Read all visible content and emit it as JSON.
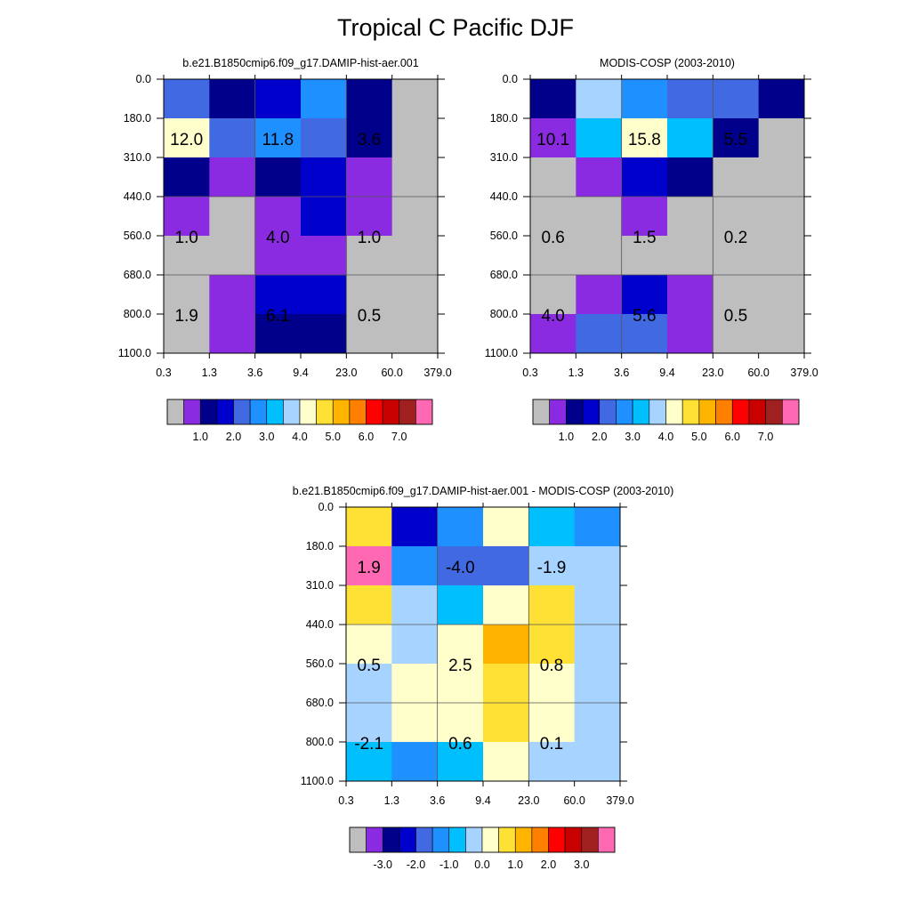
{
  "title": "Tropical C Pacific DJF",
  "colors": {
    "missing": "#bebebe",
    "box": "#000000",
    "grid": "#555555"
  },
  "chart_data": [
    {
      "type": "heatmap",
      "title": "b.e21.B1850cmip6.f09_g17.DAMIP-hist-aer.001",
      "xticks": [
        "0.3",
        "1.3",
        "3.6",
        "9.4",
        "23.0",
        "60.0",
        "379.0"
      ],
      "yticks": [
        "0.0",
        "180.0",
        "310.0",
        "440.0",
        "560.0",
        "680.0",
        "800.0",
        "1100.0"
      ],
      "cell_colors": [
        [
          "#4169e1",
          "#00008b",
          "#0000cd",
          "#1e90ff",
          "#00008b",
          "#bebebe"
        ],
        [
          "#ffffcc",
          "#4169e1",
          "#1e90ff",
          "#4169e1",
          "#00008b",
          "#bebebe"
        ],
        [
          "#00008b",
          "#8a2be2",
          "#00008b",
          "#0000cd",
          "#8a2be2",
          "#bebebe"
        ],
        [
          "#8a2be2",
          "#bebebe",
          "#8a2be2",
          "#0000cd",
          "#8a2be2",
          "#bebebe"
        ],
        [
          "#bebebe",
          "#bebebe",
          "#8a2be2",
          "#8a2be2",
          "#bebebe",
          "#bebebe"
        ],
        [
          "#bebebe",
          "#8a2be2",
          "#0000cd",
          "#0000cd",
          "#bebebe",
          "#bebebe"
        ],
        [
          "#bebebe",
          "#8a2be2",
          "#00008b",
          "#00008b",
          "#bebebe",
          "#bebebe"
        ]
      ],
      "sums": [
        {
          "value": "12.0",
          "col": 0.5,
          "row": 1.5
        },
        {
          "value": "11.8",
          "col": 2.5,
          "row": 1.5
        },
        {
          "value": "3.6",
          "col": 4.5,
          "row": 1.5
        },
        {
          "value": "1.0",
          "col": 0.5,
          "row": 4.0
        },
        {
          "value": "4.0",
          "col": 2.5,
          "row": 4.0
        },
        {
          "value": "1.0",
          "col": 4.5,
          "row": 4.0
        },
        {
          "value": "1.9",
          "col": 0.5,
          "row": 6.0
        },
        {
          "value": "6.1",
          "col": 2.5,
          "row": 6.0
        },
        {
          "value": "0.5",
          "col": 4.5,
          "row": 6.0
        }
      ],
      "colorbar": {
        "colors": [
          "#bebebe",
          "#8a2be2",
          "#00008b",
          "#0000cd",
          "#4169e1",
          "#1e90ff",
          "#00bfff",
          "#a6d3ff",
          "#ffffcc",
          "#ffe135",
          "#ffb400",
          "#ff7f00",
          "#ff0000",
          "#c80000",
          "#a02020",
          "#ff69b4"
        ],
        "labels": [
          "1.0",
          "2.0",
          "3.0",
          "4.0",
          "5.0",
          "6.0",
          "7.0"
        ],
        "label_first_boundary": 2
      }
    },
    {
      "type": "heatmap",
      "title": "MODIS-COSP (2003-2010)",
      "xticks": [
        "0.3",
        "1.3",
        "3.6",
        "9.4",
        "23.0",
        "60.0",
        "379.0"
      ],
      "yticks": [
        "0.0",
        "180.0",
        "310.0",
        "440.0",
        "560.0",
        "680.0",
        "800.0",
        "1100.0"
      ],
      "cell_colors": [
        [
          "#00008b",
          "#a6d3ff",
          "#1e90ff",
          "#4169e1",
          "#4169e1",
          "#00008b"
        ],
        [
          "#8a2be2",
          "#00bfff",
          "#ffffcc",
          "#00bfff",
          "#00008b",
          "#bebebe"
        ],
        [
          "#bebebe",
          "#8a2be2",
          "#0000cd",
          "#00008b",
          "#bebebe",
          "#bebebe"
        ],
        [
          "#bebebe",
          "#bebebe",
          "#8a2be2",
          "#bebebe",
          "#bebebe",
          "#bebebe"
        ],
        [
          "#bebebe",
          "#bebebe",
          "#bebebe",
          "#bebebe",
          "#bebebe",
          "#bebebe"
        ],
        [
          "#bebebe",
          "#8a2be2",
          "#0000cd",
          "#8a2be2",
          "#bebebe",
          "#bebebe"
        ],
        [
          "#8a2be2",
          "#4169e1",
          "#4169e1",
          "#8a2be2",
          "#bebebe",
          "#bebebe"
        ]
      ],
      "sums": [
        {
          "value": "10.1",
          "col": 0.5,
          "row": 1.5
        },
        {
          "value": "15.8",
          "col": 2.5,
          "row": 1.5
        },
        {
          "value": "5.5",
          "col": 4.5,
          "row": 1.5
        },
        {
          "value": "0.6",
          "col": 0.5,
          "row": 4.0
        },
        {
          "value": "1.5",
          "col": 2.5,
          "row": 4.0
        },
        {
          "value": "0.2",
          "col": 4.5,
          "row": 4.0
        },
        {
          "value": "4.0",
          "col": 0.5,
          "row": 6.0
        },
        {
          "value": "5.6",
          "col": 2.5,
          "row": 6.0
        },
        {
          "value": "0.5",
          "col": 4.5,
          "row": 6.0
        }
      ],
      "colorbar": {
        "colors": [
          "#bebebe",
          "#8a2be2",
          "#00008b",
          "#0000cd",
          "#4169e1",
          "#1e90ff",
          "#00bfff",
          "#a6d3ff",
          "#ffffcc",
          "#ffe135",
          "#ffb400",
          "#ff7f00",
          "#ff0000",
          "#c80000",
          "#a02020",
          "#ff69b4"
        ],
        "labels": [
          "1.0",
          "2.0",
          "3.0",
          "4.0",
          "5.0",
          "6.0",
          "7.0"
        ],
        "label_first_boundary": 2
      }
    },
    {
      "type": "heatmap",
      "title": "b.e21.B1850cmip6.f09_g17.DAMIP-hist-aer.001 - MODIS-COSP (2003-2010)",
      "xticks": [
        "0.3",
        "1.3",
        "3.6",
        "9.4",
        "23.0",
        "60.0",
        "379.0"
      ],
      "yticks": [
        "0.0",
        "180.0",
        "310.0",
        "440.0",
        "560.0",
        "680.0",
        "800.0",
        "1100.0"
      ],
      "cell_colors": [
        [
          "#ffe135",
          "#0000cd",
          "#1e90ff",
          "#ffffcc",
          "#00bfff",
          "#1e90ff"
        ],
        [
          "#ff69b4",
          "#1e90ff",
          "#4169e1",
          "#4169e1",
          "#a6d3ff",
          "#a6d3ff"
        ],
        [
          "#ffe135",
          "#a6d3ff",
          "#00bfff",
          "#ffffcc",
          "#ffe135",
          "#a6d3ff"
        ],
        [
          "#ffffcc",
          "#a6d3ff",
          "#ffffcc",
          "#ffb400",
          "#ffe135",
          "#a6d3ff"
        ],
        [
          "#a6d3ff",
          "#ffffcc",
          "#ffffcc",
          "#ffe135",
          "#ffffcc",
          "#a6d3ff"
        ],
        [
          "#a6d3ff",
          "#ffffcc",
          "#ffffcc",
          "#ffe135",
          "#ffffcc",
          "#a6d3ff"
        ],
        [
          "#00bfff",
          "#1e90ff",
          "#00bfff",
          "#ffffcc",
          "#a6d3ff",
          "#a6d3ff"
        ]
      ],
      "sums": [
        {
          "value": "1.9",
          "col": 0.5,
          "row": 1.5
        },
        {
          "value": "-4.0",
          "col": 2.5,
          "row": 1.5
        },
        {
          "value": "-1.9",
          "col": 4.5,
          "row": 1.5
        },
        {
          "value": "0.5",
          "col": 0.5,
          "row": 4.0
        },
        {
          "value": "2.5",
          "col": 2.5,
          "row": 4.0
        },
        {
          "value": "0.8",
          "col": 4.5,
          "row": 4.0
        },
        {
          "value": "-2.1",
          "col": 0.5,
          "row": 6.0
        },
        {
          "value": "0.6",
          "col": 2.5,
          "row": 6.0
        },
        {
          "value": "0.1",
          "col": 4.5,
          "row": 6.0
        }
      ],
      "colorbar": {
        "colors": [
          "#bebebe",
          "#8a2be2",
          "#00008b",
          "#0000cd",
          "#4169e1",
          "#1e90ff",
          "#00bfff",
          "#a6d3ff",
          "#ffffcc",
          "#ffe135",
          "#ffb400",
          "#ff7f00",
          "#ff0000",
          "#c80000",
          "#a02020",
          "#ff69b4"
        ],
        "labels": [
          "-3.0",
          "-2.0",
          "-1.0",
          "0.0",
          "1.0",
          "2.0",
          "3.0"
        ],
        "label_first_boundary": 2
      }
    }
  ]
}
